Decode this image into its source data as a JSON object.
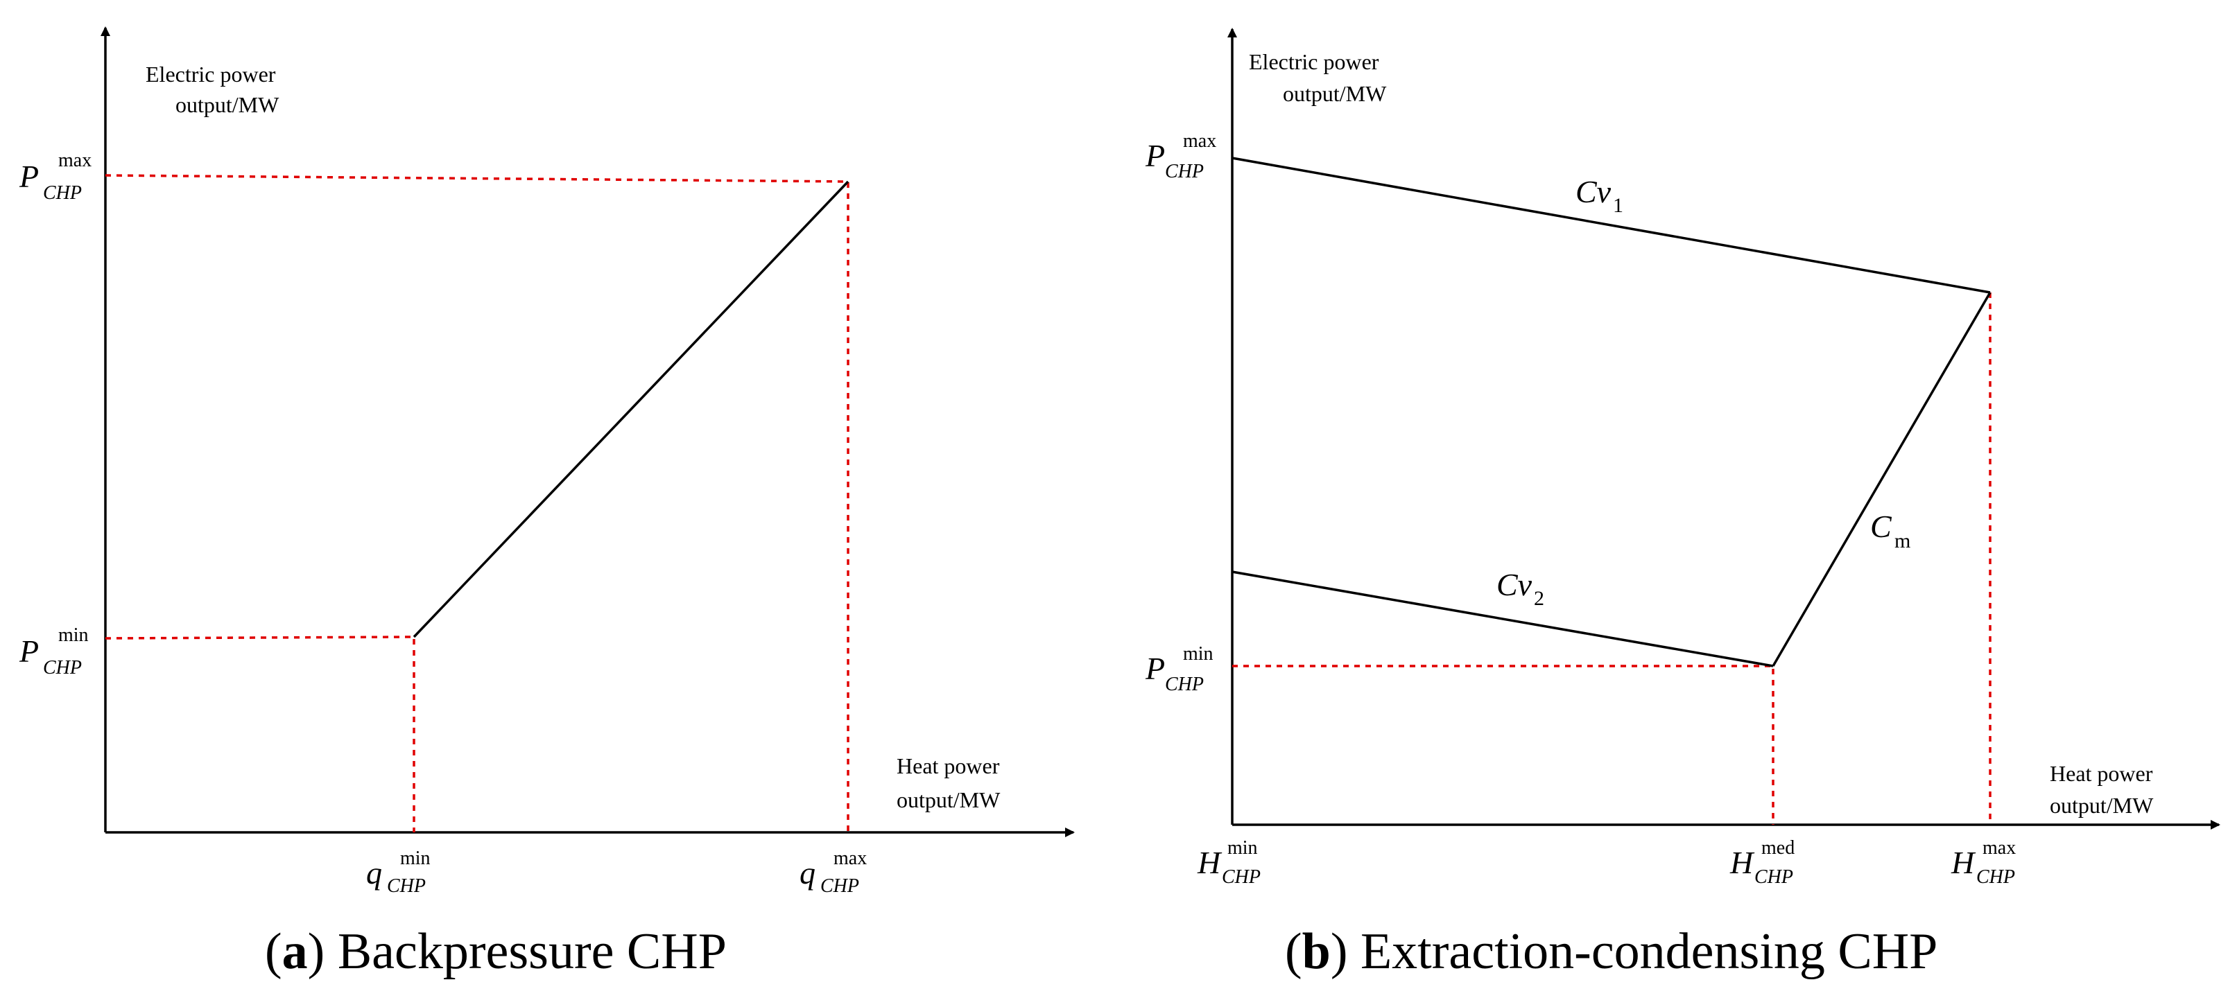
{
  "panel_a": {
    "y_axis_label_line1": "Electric power",
    "y_axis_label_line2": "output/MW",
    "x_axis_label_line1": "Heat power",
    "x_axis_label_line2": "output/MW",
    "p_max": {
      "base": "P",
      "sup": "max",
      "sub": "CHP"
    },
    "p_min": {
      "base": "P",
      "sup": "min",
      "sub": "CHP"
    },
    "q_min": {
      "base": "q",
      "sup": "min",
      "sub": "CHP"
    },
    "q_max": {
      "base": "q",
      "sup": "max",
      "sub": "CHP"
    },
    "caption_letter": "a",
    "caption_text": " Backpressure CHP"
  },
  "panel_b": {
    "y_axis_label_line1": "Electric power",
    "y_axis_label_line2": "output/MW",
    "x_axis_label_line1": "Heat power",
    "x_axis_label_line2": "output/MW",
    "p_max": {
      "base": "P",
      "sup": "max",
      "sub": "CHP"
    },
    "p_min": {
      "base": "P",
      "sup": "min",
      "sub": "CHP"
    },
    "h_min": {
      "base": "H",
      "sup": "min",
      "sub": "CHP"
    },
    "h_med": {
      "base": "H",
      "sup": "med",
      "sub": "CHP"
    },
    "h_max": {
      "base": "H",
      "sup": "max",
      "sub": "CHP"
    },
    "cv1": {
      "base": "Cv",
      "sub": "1"
    },
    "cv2": {
      "base": "Cv",
      "sub": "2"
    },
    "cm": {
      "base": "C",
      "sub": "m"
    },
    "caption_letter": "b",
    "caption_text": " Extraction-condensing CHP"
  },
  "colors": {
    "axis": "#000000",
    "boundary": "#000000",
    "guide": "#e00000"
  }
}
